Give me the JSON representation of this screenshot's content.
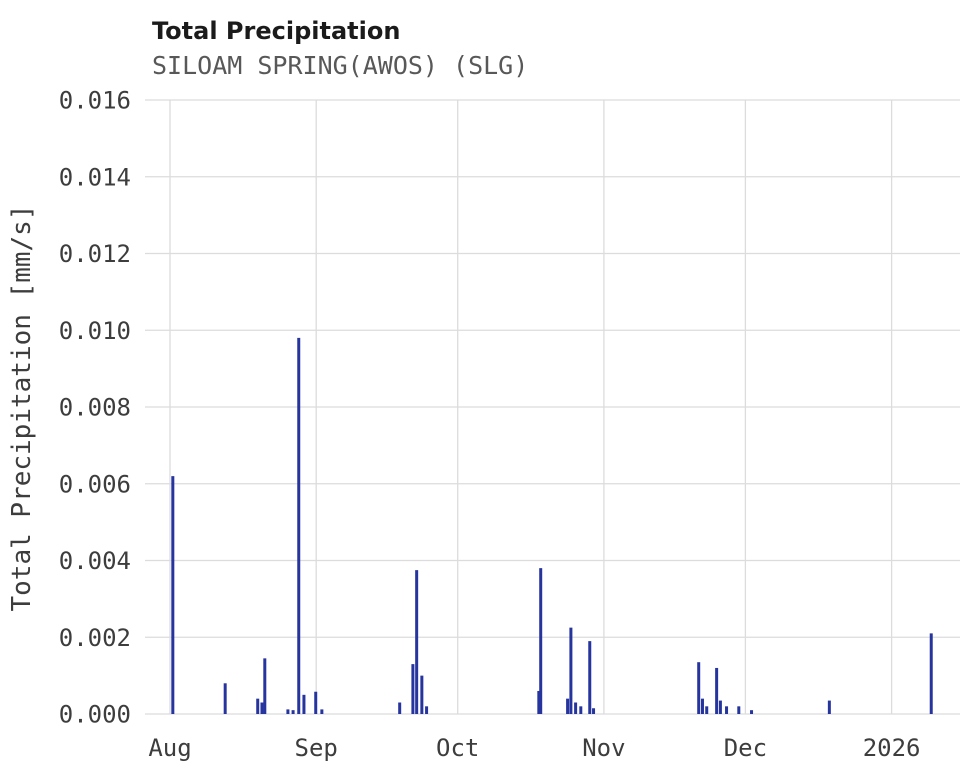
{
  "header": {
    "title": "Total Precipitation",
    "subtitle": "SILOAM SPRING(AWOS) (SLG)"
  },
  "chart_data": {
    "type": "line",
    "title": "Total Precipitation",
    "subtitle": "SILOAM SPRING(AWOS) (SLG)",
    "xlabel": "",
    "ylabel": "Total Precipitation [mm/s]",
    "x_unit": "days from Aug 1",
    "x_domain": [
      -5.3,
      167.5
    ],
    "y_domain": [
      0,
      0.016
    ],
    "grid": true,
    "legend": "none",
    "line_color": "#26349e",
    "grid_color": "#dcdcdc",
    "y_ticks": [
      0,
      0.002,
      0.004,
      0.006,
      0.008,
      0.01,
      0.012,
      0.014,
      0.016
    ],
    "x_ticks": [
      {
        "pos": 0,
        "label": "Aug"
      },
      {
        "pos": 31,
        "label": "Sep"
      },
      {
        "pos": 61,
        "label": "Oct"
      },
      {
        "pos": 92,
        "label": "Nov"
      },
      {
        "pos": 122,
        "label": "Dec"
      },
      {
        "pos": 153,
        "label": "2026"
      }
    ],
    "spikes": [
      [
        0.6,
        0.0062
      ],
      [
        11.7,
        0.0008
      ],
      [
        18.6,
        0.0004
      ],
      [
        19.5,
        0.0003
      ],
      [
        20.1,
        0.00145
      ],
      [
        25.0,
        0.00012
      ],
      [
        26.1,
        0.0001
      ],
      [
        27.3,
        0.0098
      ],
      [
        28.4,
        0.0005
      ],
      [
        30.9,
        0.00058
      ],
      [
        32.2,
        0.00012
      ],
      [
        48.7,
        0.0003
      ],
      [
        51.5,
        0.0013
      ],
      [
        52.3,
        0.00375
      ],
      [
        53.4,
        0.001
      ],
      [
        54.4,
        0.0002
      ],
      [
        78.2,
        0.0006
      ],
      [
        78.6,
        0.0038
      ],
      [
        84.3,
        0.0004
      ],
      [
        85.0,
        0.00225
      ],
      [
        86.0,
        0.0003
      ],
      [
        87.1,
        0.0002
      ],
      [
        89.0,
        0.0019
      ],
      [
        89.8,
        0.00015
      ],
      [
        112.1,
        0.00135
      ],
      [
        112.9,
        0.0004
      ],
      [
        113.8,
        0.0002
      ],
      [
        115.9,
        0.0012
      ],
      [
        116.7,
        0.00035
      ],
      [
        118.0,
        0.0002
      ],
      [
        120.6,
        0.0002
      ],
      [
        123.3,
        0.0001
      ],
      [
        139.8,
        0.00035
      ],
      [
        161.4,
        0.0021
      ]
    ]
  }
}
